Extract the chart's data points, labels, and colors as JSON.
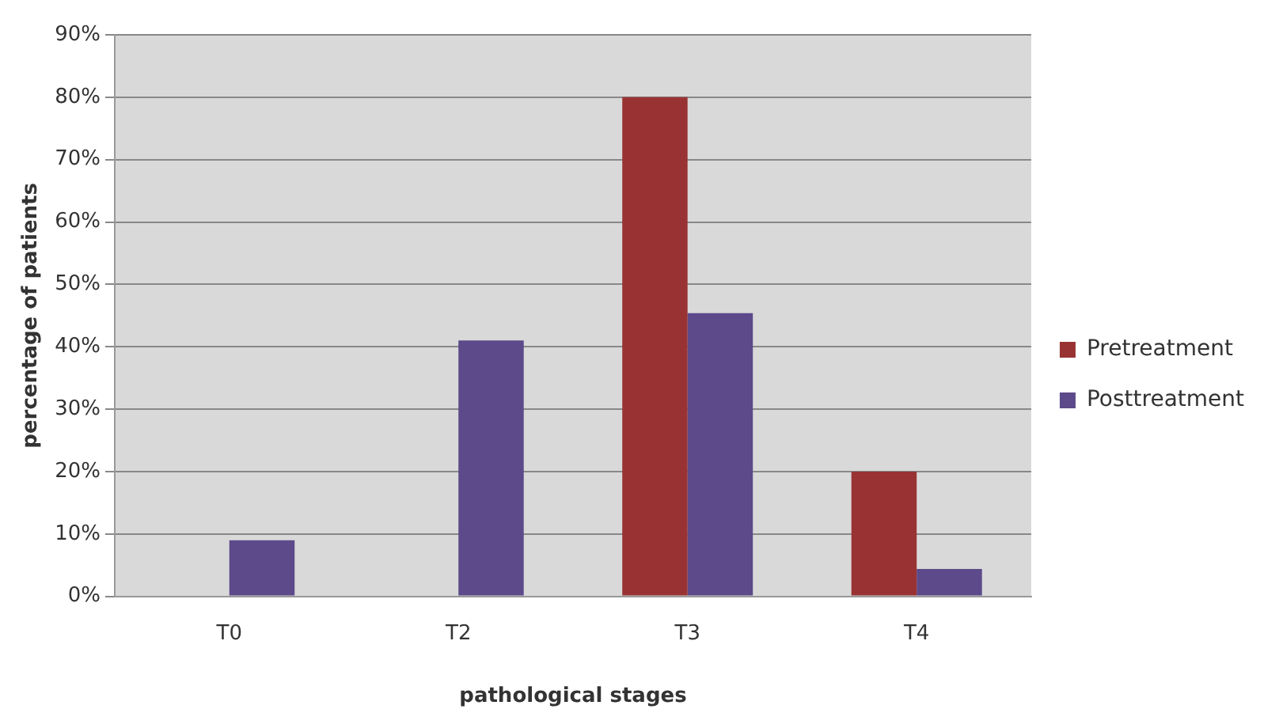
{
  "chart_data": {
    "type": "bar",
    "xlabel": "pathological stages",
    "ylabel": "percentage of patients",
    "categories": [
      "T0",
      "T2",
      "T3",
      "T4"
    ],
    "series": [
      {
        "name": "Pretreatment",
        "color": "#993333",
        "values": [
          0,
          0,
          80,
          20
        ]
      },
      {
        "name": "Posttreatment",
        "color": "#5c4a8a",
        "values": [
          9,
          41,
          45.4,
          4.4
        ]
      }
    ],
    "ylim": [
      0,
      90
    ],
    "yticks": [
      {
        "value": 0,
        "label": "0%"
      },
      {
        "value": 10,
        "label": "10%"
      },
      {
        "value": 20,
        "label": "20%"
      },
      {
        "value": 30,
        "label": "30%"
      },
      {
        "value": 40,
        "label": "40%"
      },
      {
        "value": 50,
        "label": "50%"
      },
      {
        "value": 60,
        "label": "60%"
      },
      {
        "value": 70,
        "label": "70%"
      },
      {
        "value": 80,
        "label": "80%"
      },
      {
        "value": 90,
        "label": "90%"
      }
    ],
    "grid": "y",
    "legend": "right"
  }
}
